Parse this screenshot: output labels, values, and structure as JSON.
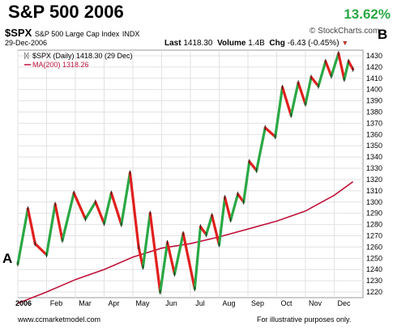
{
  "header": {
    "title": "S&P 500 2006",
    "gain": "13.62%",
    "logo": "© StockCharts.com",
    "symbol": "$SPX",
    "symbol_name": "S&P 500 Large Cap Index",
    "exchange": "INDX",
    "date": "29-Dec-2006",
    "last_label": "Last",
    "last_value": "1418.30",
    "volume_label": "Volume",
    "volume_value": "1.4B",
    "chg_label": "Chg",
    "chg_value": "-6.43 (-0.45%)",
    "chg_arrow": "▼"
  },
  "markers": {
    "a": "A",
    "b": "B"
  },
  "footer": {
    "site": "www.ccmarketmodel.com",
    "disclaimer": "For illustrative purposes only."
  },
  "chart_data": {
    "type": "line",
    "legend": [
      {
        "label": "$SPX (Daily) 1418.30 (29 Dec)",
        "color": "#000000"
      },
      {
        "label": "MA(200) 1318.26",
        "color": "#c0143c"
      }
    ],
    "legend_placement": "top-left",
    "x_tick_labels": [
      "2006",
      "Feb",
      "Mar",
      "Apr",
      "May",
      "Jun",
      "Jul",
      "Aug",
      "Sep",
      "Oct",
      "Nov",
      "Dec"
    ],
    "x_tick_months": [
      0,
      1,
      2,
      3,
      4,
      5,
      6,
      7,
      8,
      9,
      10,
      11
    ],
    "ylim": [
      1215,
      1435
    ],
    "y_ticks": [
      1220,
      1230,
      1240,
      1250,
      1260,
      1270,
      1280,
      1290,
      1300,
      1310,
      1320,
      1330,
      1340,
      1350,
      1360,
      1370,
      1380,
      1390,
      1400,
      1410,
      1420,
      1430
    ],
    "grid": true,
    "up_color": "#2aa845",
    "down_color": "#e0201e",
    "series": [
      {
        "name": "$SPX (Daily)",
        "x": [
          0.0,
          0.35,
          0.6,
          1.0,
          1.3,
          1.55,
          1.95,
          2.35,
          2.7,
          3.0,
          3.25,
          3.6,
          3.9,
          4.2,
          4.35,
          4.6,
          4.95,
          5.2,
          5.45,
          5.75,
          6.15,
          6.35,
          6.55,
          6.75,
          7.0,
          7.2,
          7.4,
          7.65,
          7.85,
          8.05,
          8.3,
          8.6,
          8.95,
          9.2,
          9.5,
          9.75,
          10.0,
          10.2,
          10.45,
          10.7,
          10.9,
          11.15,
          11.35,
          11.5,
          11.65
        ],
        "values": [
          1245,
          1294,
          1263,
          1253,
          1298,
          1266,
          1308,
          1285,
          1300,
          1281,
          1308,
          1280,
          1326,
          1260,
          1242,
          1290,
          1220,
          1264,
          1236,
          1272,
          1223,
          1278,
          1271,
          1288,
          1262,
          1304,
          1284,
          1307,
          1300,
          1336,
          1328,
          1366,
          1358,
          1402,
          1377,
          1406,
          1387,
          1411,
          1403,
          1425,
          1412,
          1432,
          1409,
          1425,
          1418
        ]
      },
      {
        "name": "MA(200)",
        "x": [
          0.0,
          1.0,
          2.0,
          3.0,
          4.0,
          5.0,
          6.0,
          7.0,
          8.0,
          9.0,
          10.0,
          11.0,
          11.65
        ],
        "values": [
          1210,
          1220,
          1231,
          1240,
          1251,
          1259,
          1263,
          1269,
          1276,
          1283,
          1292,
          1306,
          1318
        ]
      }
    ]
  }
}
